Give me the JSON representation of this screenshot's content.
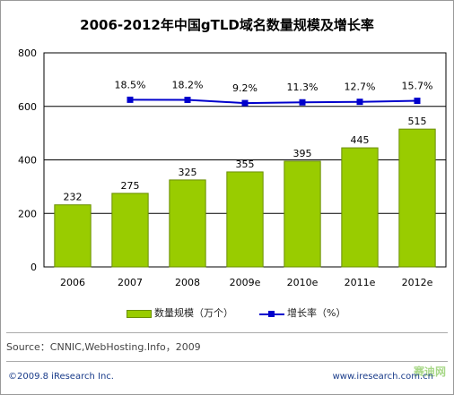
{
  "title": "2006-2012年中国gTLD域名数量规模及增长率",
  "source": "Source：CNNIC,WebHosting.Info，2009",
  "copyright": "©2009.8 iResearch Inc.",
  "website": "www.iresearch.com.cn",
  "watermark": "赛迪网",
  "colors": {
    "bar": "#99cc00",
    "bar_border": "#6a8f00",
    "line": "#0000cc",
    "grid": "#000000"
  },
  "chart_data": {
    "type": "bar",
    "categories": [
      "2006",
      "2007",
      "2008",
      "2009e",
      "2010e",
      "2011e",
      "2012e"
    ],
    "series": [
      {
        "name": "数量规模（万个）",
        "values": [
          232,
          275,
          325,
          355,
          395,
          445,
          515
        ],
        "labels": [
          "232",
          "275",
          "325",
          "355",
          "395",
          "445",
          "515"
        ]
      },
      {
        "name": "增长率（%）",
        "type": "line",
        "values": [
          null,
          18.5,
          18.2,
          9.2,
          11.3,
          12.7,
          15.7
        ],
        "labels": [
          "",
          "18.5%",
          "18.2%",
          "9.2%",
          "11.3%",
          "12.7%",
          "15.7%"
        ]
      }
    ],
    "yticks": [
      "0",
      "200",
      "400",
      "600",
      "800"
    ],
    "ylim": [
      0,
      800
    ],
    "grid": true,
    "legend_position": "bottom"
  }
}
